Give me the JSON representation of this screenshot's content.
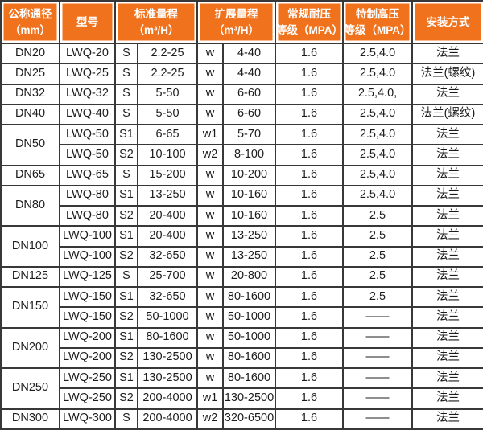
{
  "colors": {
    "header_bg": "#f0721d",
    "header_text": "#ffffff",
    "grid_border": "#383838",
    "body_text": "#1c1c1c"
  },
  "table": {
    "headers": {
      "dn": "公称通径\n（mm）",
      "model": "型号",
      "std_range": "标准量程\n（m³/H）",
      "ext_range": "扩展量程\n（m³/H）",
      "pressure": "常规耐压\n等级（MPA）",
      "high_pressure": "特制高压\n等级（MPA）",
      "install": "安装方式"
    },
    "rows": [
      {
        "dn": "DN20",
        "span": 1,
        "model": "LWQ-20",
        "std_label": "S",
        "std_range": "2.2-25",
        "ext_label": "w",
        "ext_range": "4-40",
        "pressure": "1.6",
        "high_pressure": "2.5,4.0",
        "install": "法兰"
      },
      {
        "dn": "DN25",
        "span": 1,
        "model": "LWQ-25",
        "std_label": "S",
        "std_range": "2.2-25",
        "ext_label": "w",
        "ext_range": "4-40",
        "pressure": "1.6",
        "high_pressure": "2.5,4.0",
        "install": "法兰(螺纹)"
      },
      {
        "dn": "DN32",
        "span": 1,
        "model": "LWQ-32",
        "std_label": "S",
        "std_range": "5-50",
        "ext_label": "w",
        "ext_range": "6-60",
        "pressure": "1.6",
        "high_pressure": "2.5,4.0,",
        "install": "法兰"
      },
      {
        "dn": "DN40",
        "span": 1,
        "model": "LWQ-40",
        "std_label": "S",
        "std_range": "5-50",
        "ext_label": "w",
        "ext_range": "6-60",
        "pressure": "1.6",
        "high_pressure": "2.5,4.0",
        "install": "法兰(螺纹)"
      },
      {
        "dn": "DN50",
        "span": 2,
        "model": "LWQ-50",
        "std_label": "S1",
        "std_range": "6-65",
        "ext_label": "w1",
        "ext_range": "5-70",
        "pressure": "1.6",
        "high_pressure": "2.5,4.0",
        "install": "法兰"
      },
      {
        "dn": null,
        "model": "LWQ-50",
        "std_label": "S2",
        "std_range": "10-100",
        "ext_label": "w2",
        "ext_range": "8-100",
        "pressure": "1.6",
        "high_pressure": "2.5,4.0",
        "install": "法兰"
      },
      {
        "dn": "DN65",
        "span": 1,
        "model": "LWQ-65",
        "std_label": "S",
        "std_range": "15-200",
        "ext_label": "w",
        "ext_range": "10-200",
        "pressure": "1.6",
        "high_pressure": "2.5,4.0",
        "install": "法兰"
      },
      {
        "dn": "DN80",
        "span": 2,
        "model": "LWQ-80",
        "std_label": "S1",
        "std_range": "13-250",
        "ext_label": "w",
        "ext_range": "10-160",
        "pressure": "1.6",
        "high_pressure": "2.5,4.0",
        "install": "法兰"
      },
      {
        "dn": null,
        "model": "LWQ-80",
        "std_label": "S2",
        "std_range": "20-400",
        "ext_label": "w",
        "ext_range": "10-160",
        "pressure": "1.6",
        "high_pressure": "2.5",
        "install": "法兰"
      },
      {
        "dn": "DN100",
        "span": 2,
        "model": "LWQ-100",
        "std_label": "S1",
        "std_range": "20-400",
        "ext_label": "w",
        "ext_range": "13-250",
        "pressure": "1.6",
        "high_pressure": "2.5",
        "install": "法兰"
      },
      {
        "dn": null,
        "model": "LWQ-100",
        "std_label": "S2",
        "std_range": "32-650",
        "ext_label": "w",
        "ext_range": "13-250",
        "pressure": "1.6",
        "high_pressure": "2.5",
        "install": "法兰"
      },
      {
        "dn": "DN125",
        "span": 1,
        "model": "LWQ-125",
        "std_label": "S",
        "std_range": "25-700",
        "ext_label": "w",
        "ext_range": "20-800",
        "pressure": "1.6",
        "high_pressure": "2.5",
        "install": "法兰"
      },
      {
        "dn": "DN150",
        "span": 2,
        "model": "LWQ-150",
        "std_label": "S1",
        "std_range": "32-650",
        "ext_label": "w",
        "ext_range": "80-1600",
        "pressure": "1.6",
        "high_pressure": "2.5",
        "install": "法兰"
      },
      {
        "dn": null,
        "model": "LWQ-150",
        "std_label": "S2",
        "std_range": "50-1000",
        "ext_label": "w",
        "ext_range": "50-1000",
        "pressure": "1.6",
        "high_pressure": "——",
        "install": "法兰"
      },
      {
        "dn": "DN200",
        "span": 2,
        "model": "LWQ-200",
        "std_label": "S1",
        "std_range": "80-1600",
        "ext_label": "w",
        "ext_range": "50-1000",
        "pressure": "1.6",
        "high_pressure": "——",
        "install": "法兰"
      },
      {
        "dn": null,
        "model": "LWQ-200",
        "std_label": "S2",
        "std_range": "130-2500",
        "ext_label": "w",
        "ext_range": "80-1600",
        "pressure": "1.6",
        "high_pressure": "——",
        "install": "法兰"
      },
      {
        "dn": "DN250",
        "span": 2,
        "model": "LWQ-250",
        "std_label": "S1",
        "std_range": "130-2500",
        "ext_label": "w",
        "ext_range": "80-1600",
        "pressure": "1.6",
        "high_pressure": "——",
        "install": "法兰"
      },
      {
        "dn": null,
        "model": "LWQ-250",
        "std_label": "S2",
        "std_range": "200-4000",
        "ext_label": "w1",
        "ext_range": "130-2500",
        "pressure": "1.6",
        "high_pressure": "——",
        "install": "法兰"
      },
      {
        "dn": "DN300",
        "span": 1,
        "model": "LWQ-300",
        "std_label": "S",
        "std_range": "200-4000",
        "ext_label": "w2",
        "ext_range": "320-6500",
        "pressure": "1.6",
        "high_pressure": "——",
        "install": "法兰"
      }
    ]
  }
}
